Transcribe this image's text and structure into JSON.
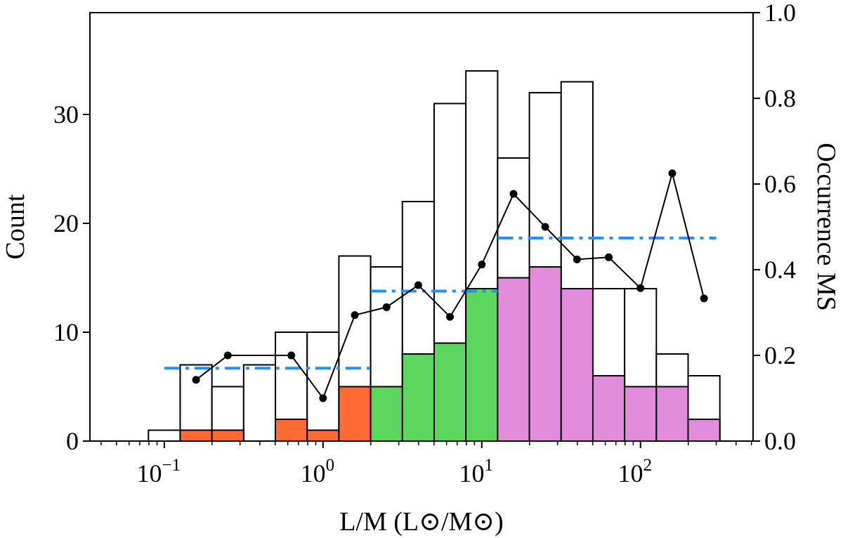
{
  "chart_data": {
    "type": "bar",
    "xlabel": "L/M (L⊙/M⊙)",
    "ylabel": "Count",
    "ylabel_right": "Occurrence MS",
    "x_scale": "log",
    "xlim": [
      0.034,
      512
    ],
    "ylim": [
      0,
      39.35
    ],
    "ylim_right": [
      0,
      1.0
    ],
    "x_ticks": [
      {
        "value": 0.1,
        "base": "10",
        "exp": "−1"
      },
      {
        "value": 1,
        "base": "10",
        "exp": "0"
      },
      {
        "value": 10,
        "base": "10",
        "exp": "1"
      },
      {
        "value": 100,
        "base": "10",
        "exp": "2"
      }
    ],
    "y_ticks": [
      "0",
      "10",
      "20",
      "30"
    ],
    "y_ticks_right": [
      "0.0",
      "0.2",
      "0.4",
      "0.6",
      "0.8",
      "1.0"
    ],
    "grid": false,
    "bin_edges_log10": [
      -1.1,
      -0.9,
      -0.7,
      -0.5,
      -0.3,
      -0.1,
      0.1,
      0.3,
      0.5,
      0.7,
      0.9,
      1.1,
      1.3,
      1.5,
      1.7,
      1.9,
      2.1,
      2.3,
      2.5
    ],
    "total_counts": [
      1,
      7,
      5,
      7,
      10,
      10,
      17,
      16,
      22,
      31,
      34,
      26,
      32,
      33,
      14,
      14,
      8,
      6
    ],
    "ms_counts": [
      0,
      1,
      1,
      0,
      2,
      1,
      5,
      5,
      8,
      9,
      14,
      15,
      16,
      14,
      6,
      5,
      5,
      2
    ],
    "ms_colors": [
      "#ff6b35",
      "#ff6b35",
      "#ff6b35",
      "#ff6b35",
      "#ff6b35",
      "#ff6b35",
      "#ff6b35",
      "#5dd65d",
      "#5dd65d",
      "#5dd65d",
      "#5dd65d",
      "#e18ddc",
      "#e18ddc",
      "#e18ddc",
      "#e18ddc",
      "#e18ddc",
      "#e18ddc",
      "#e18ddc"
    ],
    "occurrence": [
      null,
      0.143,
      0.2,
      null,
      0.2,
      0.1,
      0.294,
      0.3125,
      0.364,
      0.29,
      0.412,
      0.577,
      0.5,
      0.424,
      0.429,
      0.357,
      0.625,
      0.333
    ],
    "group_occurrence": [
      {
        "x_range": [
          0.1,
          2.0
        ],
        "value": 0.17
      },
      {
        "x_range": [
          2.0,
          12.6
        ],
        "value": 0.35
      },
      {
        "x_range": [
          12.6,
          300
        ],
        "value": 0.474
      }
    ],
    "group_line_color": "#1e90ff",
    "total_bar_color": "#ffffff",
    "line_color": "#000000"
  }
}
